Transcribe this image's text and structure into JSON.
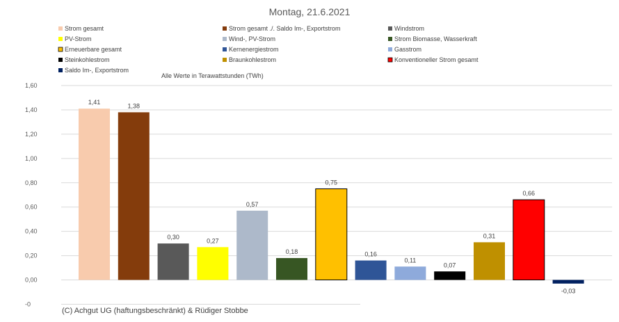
{
  "chart_data": {
    "type": "bar",
    "title": "Montag, 21.6.2021",
    "note": "Alle Werte in Terawattstunden (TWh)",
    "credit": "(C) Achgut UG (haftungsbeschränkt) & Rüdiger Stobbe",
    "ylim": [
      -0.2,
      1.6
    ],
    "y_ticks": [
      {
        "value": 1.6,
        "label": "1,60"
      },
      {
        "value": 1.4,
        "label": "1,40"
      },
      {
        "value": 1.2,
        "label": "1,20"
      },
      {
        "value": 1.0,
        "label": "1,00"
      },
      {
        "value": 0.8,
        "label": "0,80"
      },
      {
        "value": 0.6,
        "label": "0,60"
      },
      {
        "value": 0.4,
        "label": "0,40"
      },
      {
        "value": 0.2,
        "label": "0,20"
      },
      {
        "value": 0.0,
        "label": "0,00"
      },
      {
        "value": -0.2,
        "label": "-0"
      }
    ],
    "grid": true,
    "legend_position": "top",
    "series": [
      {
        "name": "Strom gesamt",
        "value": 1.41,
        "label": "1,41",
        "color": "#f8cbad",
        "outlined": false
      },
      {
        "name": "Strom gesamt ./. Saldo Im-, Exportstrom",
        "value": 1.38,
        "label": "1,38",
        "color": "#843c0c",
        "outlined": false
      },
      {
        "name": "Windstrom",
        "value": 0.3,
        "label": "0,30",
        "color": "#595959",
        "outlined": false
      },
      {
        "name": "PV-Strom",
        "value": 0.27,
        "label": "0,27",
        "color": "#ffff00",
        "outlined": false
      },
      {
        "name": "Wind-, PV-Strom",
        "value": 0.57,
        "label": "0,57",
        "color": "#adb9ca",
        "outlined": false
      },
      {
        "name": "Strom Biomasse, Wasserkraft",
        "value": 0.18,
        "label": "0,18",
        "color": "#375623",
        "outlined": false
      },
      {
        "name": "Erneuerbare gesamt",
        "value": 0.75,
        "label": "0,75",
        "color": "#ffc000",
        "outlined": true
      },
      {
        "name": "Kernenergiestrom",
        "value": 0.16,
        "label": "0,16",
        "color": "#2f5597",
        "outlined": false
      },
      {
        "name": "Gasstrom",
        "value": 0.11,
        "label": "0,11",
        "color": "#8eaadb",
        "outlined": false
      },
      {
        "name": "Steinkohlestrom",
        "value": 0.07,
        "label": "0,07",
        "color": "#000000",
        "outlined": false
      },
      {
        "name": "Braunkohlestrom",
        "value": 0.31,
        "label": "0,31",
        "color": "#bf9000",
        "outlined": false
      },
      {
        "name": "Konventioneller Strom gesamt",
        "value": 0.66,
        "label": "0,66",
        "color": "#ff0000",
        "outlined": true
      },
      {
        "name": "Saldo Im-, Exportstrom",
        "value": -0.03,
        "label": "-0,03",
        "color": "#002060",
        "outlined": false
      }
    ]
  }
}
